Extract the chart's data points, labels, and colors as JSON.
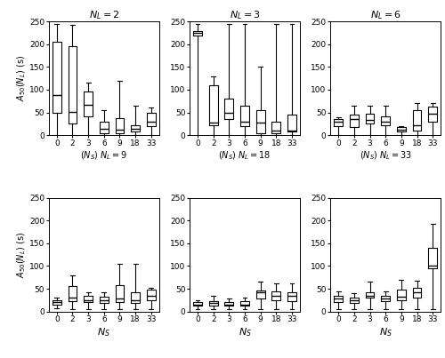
{
  "categories": [
    "0",
    "2",
    "3",
    "6",
    "9",
    "18",
    "33"
  ],
  "titles_top": [
    "$N_L = 2$",
    "$N_L = 3$",
    "$N_L = 6$"
  ],
  "xlabels_top": [
    "$(N_S)\\; N_L = 9$",
    "$(N_S)\\; N_L = 18$",
    "$(N_S)\\; N_L = 33$"
  ],
  "xlabels_bottom": [
    "$N_S$",
    "$N_S$",
    "$N_S$"
  ],
  "ylabel": "$A_{50}(N_L)$ (s)",
  "ylim": [
    0,
    250
  ],
  "yticks": [
    0,
    50,
    100,
    150,
    200,
    250
  ],
  "box_data": {
    "r0c0": {
      "whislo": [
        0,
        0,
        0,
        0,
        0,
        0,
        0
      ],
      "q1": [
        50,
        25,
        42,
        5,
        5,
        8,
        20
      ],
      "med": [
        88,
        52,
        67,
        15,
        12,
        15,
        30
      ],
      "q3": [
        205,
        195,
        97,
        30,
        38,
        22,
        50
      ],
      "whishi": [
        245,
        243,
        115,
        55,
        120,
        65,
        60
      ]
    },
    "r0c1": {
      "whislo": [
        0,
        0,
        0,
        0,
        0,
        0,
        0
      ],
      "q1": [
        220,
        22,
        35,
        20,
        5,
        5,
        8
      ],
      "med": [
        225,
        28,
        50,
        30,
        28,
        10,
        10
      ],
      "q3": [
        228,
        110,
        80,
        65,
        55,
        30,
        45
      ],
      "whishi": [
        245,
        130,
        245,
        245,
        150,
        245,
        245
      ]
    },
    "r0c2": {
      "whislo": [
        0,
        0,
        0,
        0,
        0,
        0,
        0
      ],
      "q1": [
        20,
        18,
        25,
        22,
        8,
        10,
        30
      ],
      "med": [
        30,
        35,
        33,
        30,
        12,
        22,
        48
      ],
      "q3": [
        35,
        45,
        47,
        42,
        18,
        55,
        63
      ],
      "whishi": [
        40,
        65,
        65,
        65,
        20,
        70,
        70
      ]
    },
    "r1c0": {
      "whislo": [
        8,
        5,
        5,
        5,
        5,
        5,
        5
      ],
      "q1": [
        15,
        22,
        20,
        18,
        20,
        18,
        25
      ],
      "med": [
        20,
        30,
        25,
        25,
        28,
        25,
        35
      ],
      "q3": [
        25,
        55,
        35,
        32,
        58,
        42,
        48
      ],
      "whishi": [
        30,
        80,
        42,
        42,
        105,
        105,
        52
      ]
    },
    "r1c1": {
      "whislo": [
        5,
        5,
        5,
        5,
        5,
        5,
        5
      ],
      "q1": [
        12,
        12,
        12,
        12,
        28,
        25,
        22
      ],
      "med": [
        15,
        18,
        15,
        15,
        42,
        35,
        35
      ],
      "q3": [
        20,
        22,
        20,
        22,
        47,
        45,
        42
      ],
      "whishi": [
        25,
        35,
        28,
        30,
        65,
        62,
        62
      ]
    },
    "r1c2": {
      "whislo": [
        5,
        5,
        5,
        5,
        5,
        5,
        5
      ],
      "q1": [
        20,
        18,
        30,
        22,
        25,
        30,
        95
      ],
      "med": [
        28,
        25,
        35,
        28,
        32,
        42,
        100
      ],
      "q3": [
        35,
        30,
        42,
        35,
        48,
        52,
        140
      ],
      "whishi": [
        45,
        40,
        65,
        45,
        70,
        68,
        192
      ]
    }
  }
}
